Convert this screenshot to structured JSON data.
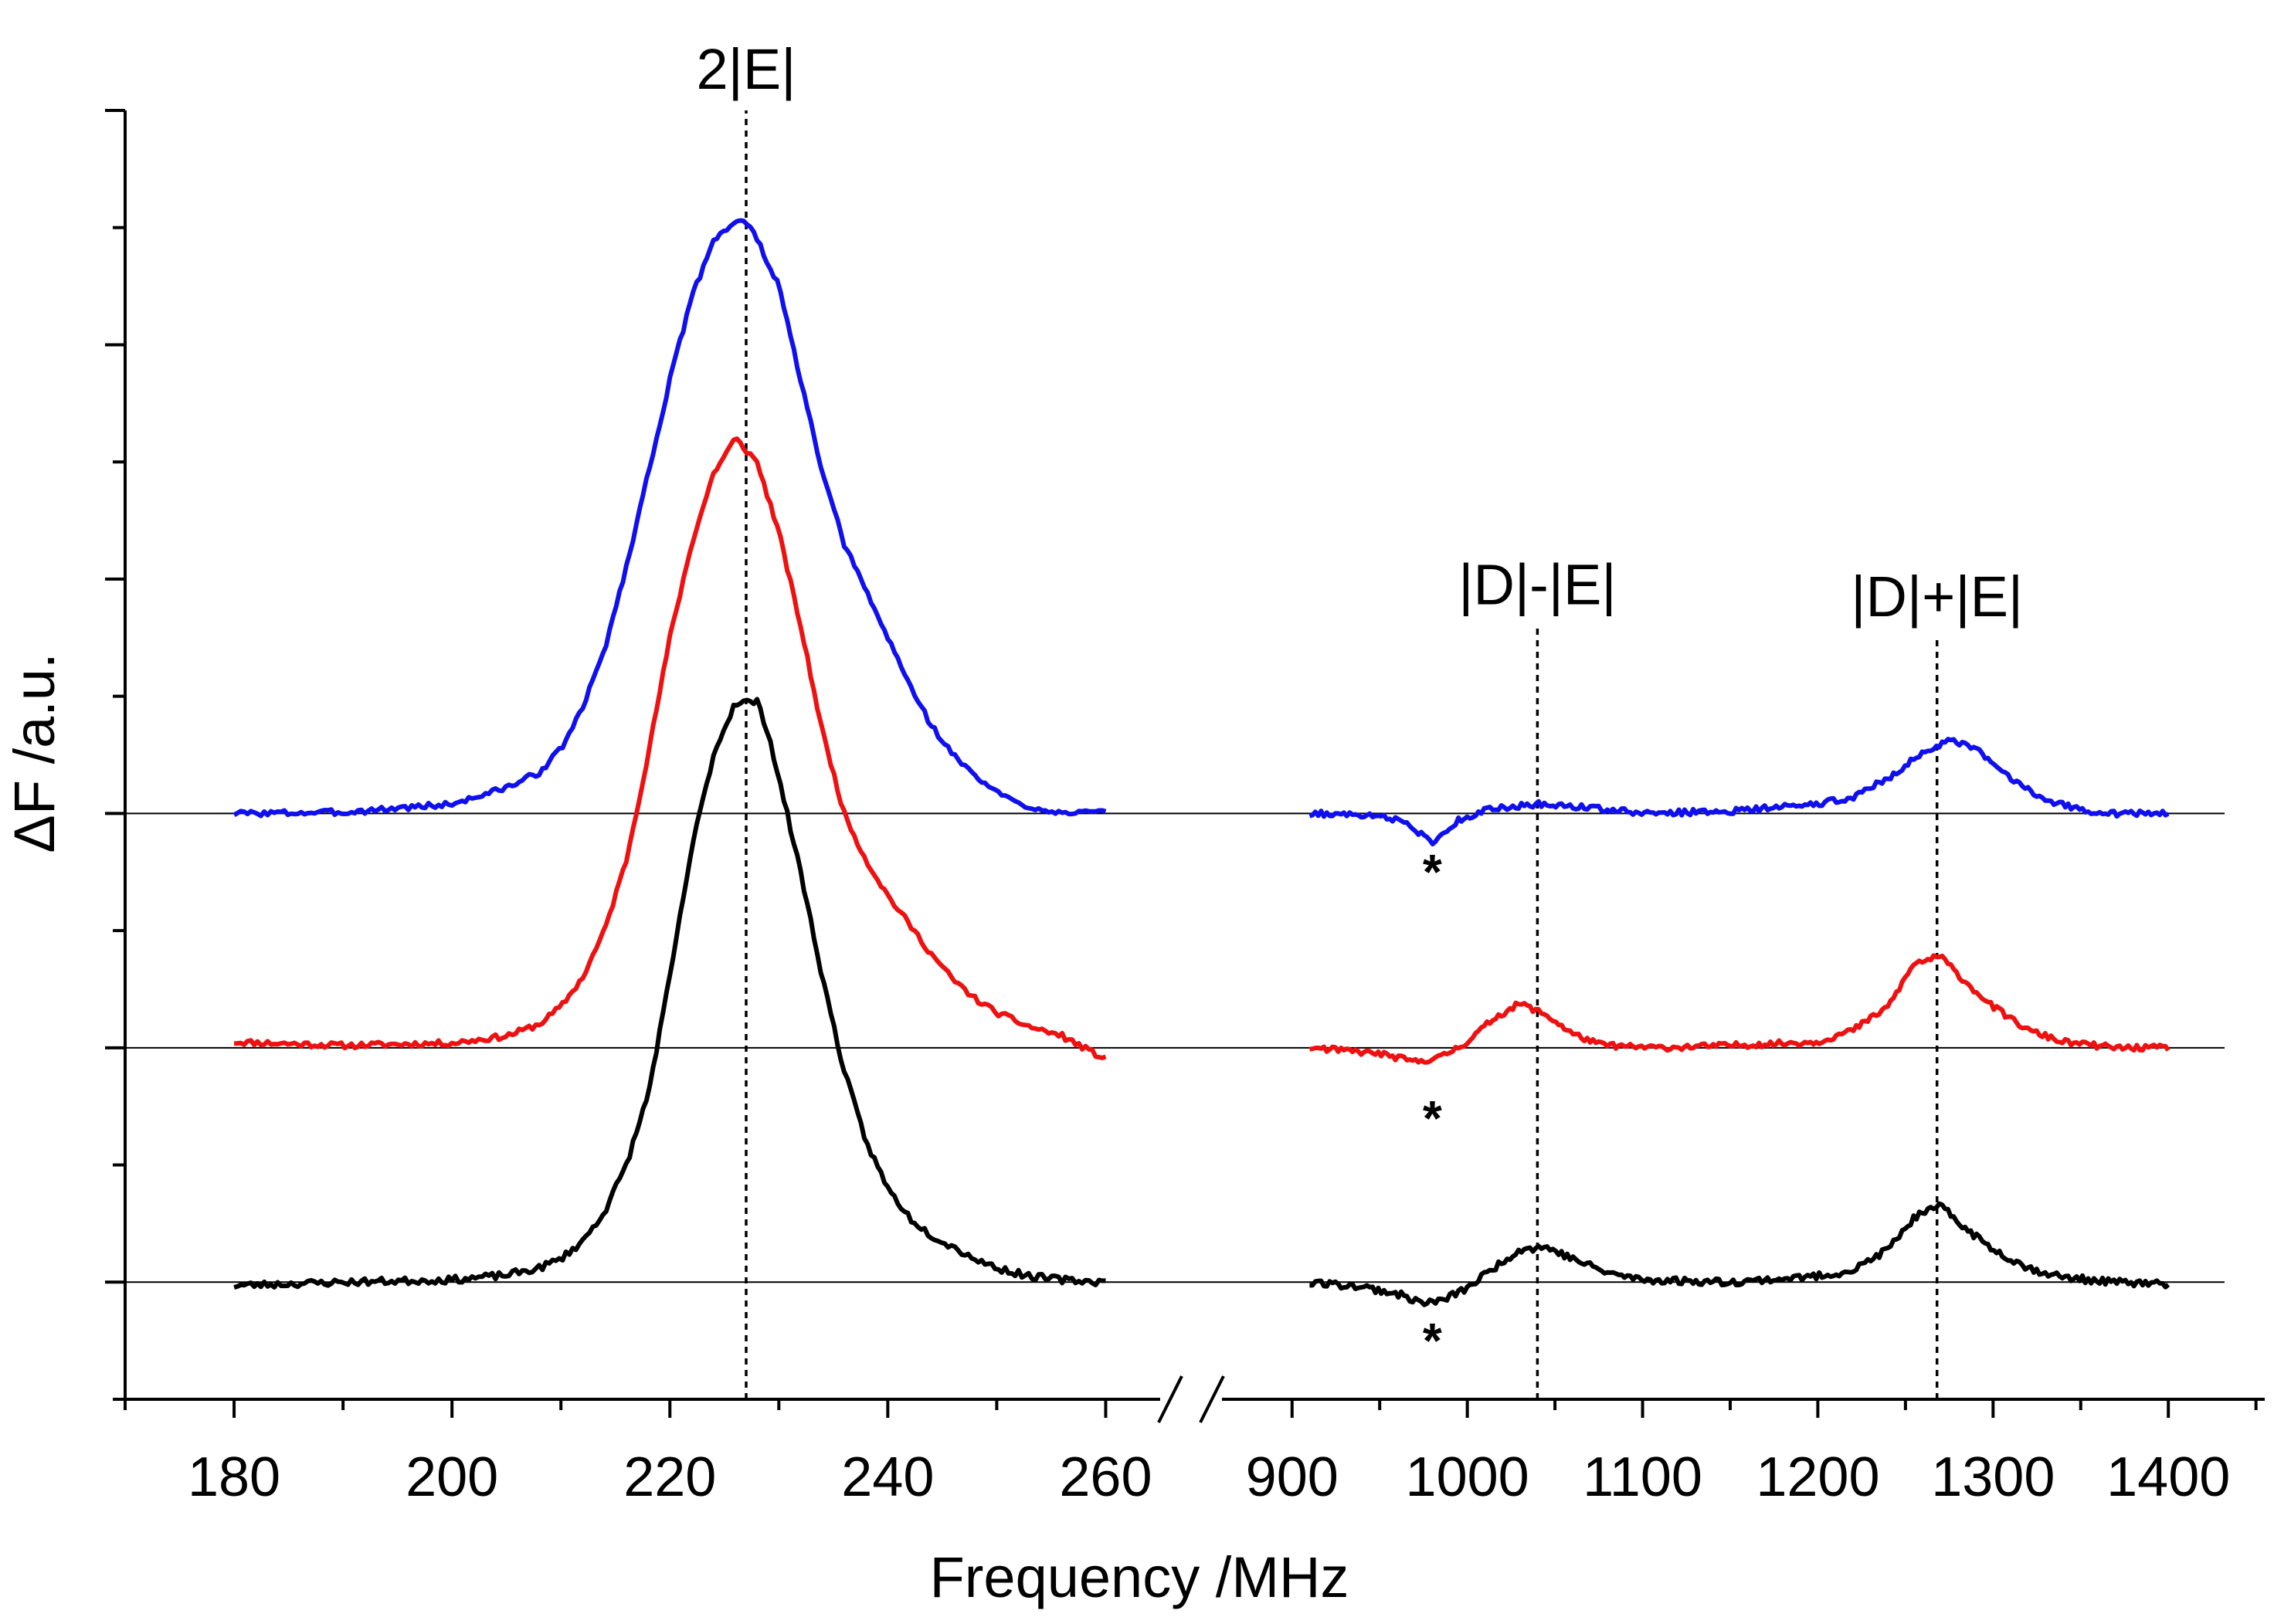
{
  "chart_data": {
    "type": "line",
    "title": "",
    "xlabel": "Frequency /MHz",
    "ylabel": "ΔF /a.u.",
    "x_axis_broken": true,
    "segments": [
      {
        "name": "low",
        "xlim": [
          170,
          265
        ],
        "ticks": [
          180,
          200,
          220,
          240,
          260
        ],
        "tick_labels": [
          "180",
          "200",
          "220",
          "240",
          "260"
        ]
      },
      {
        "name": "high",
        "xlim": [
          860,
          1455
        ],
        "ticks": [
          900,
          1000,
          1100,
          1200,
          1300,
          1400
        ],
        "tick_labels": [
          "900",
          "1000",
          "1100",
          "1200",
          "1300",
          "1400"
        ]
      }
    ],
    "ylim": [
      -1.0,
      10.0
    ],
    "y_tick_step": 1,
    "grid": false,
    "legend": "none",
    "series": [
      {
        "name": "blue",
        "color": "#1010ee",
        "baseline": 4,
        "noise": 0.025,
        "seed": 3,
        "x_low": [
          180,
          190,
          200,
          205,
          208,
          210,
          212,
          214,
          216,
          218,
          220,
          222,
          224,
          226,
          227,
          228,
          230,
          232,
          234,
          236,
          238,
          240,
          242,
          244,
          246,
          248,
          250,
          252,
          255,
          260
        ],
        "y_low": [
          0.0,
          0.01,
          0.08,
          0.22,
          0.35,
          0.55,
          0.9,
          1.4,
          2.1,
          2.9,
          3.7,
          4.4,
          4.9,
          5.05,
          5.05,
          4.9,
          4.5,
          3.7,
          2.9,
          2.3,
          1.9,
          1.5,
          1.1,
          0.75,
          0.5,
          0.32,
          0.18,
          0.08,
          0.02,
          0.0
        ],
        "x_high": [
          910,
          950,
          965,
          980,
          995,
          1010,
          1040,
          1070,
          1100,
          1150,
          1200,
          1220,
          1240,
          1260,
          1275,
          1290,
          1310,
          1330,
          1350,
          1370,
          1400
        ],
        "y_high": [
          0.0,
          -0.02,
          -0.08,
          -0.25,
          -0.06,
          0.03,
          0.08,
          0.05,
          0.0,
          0.02,
          0.08,
          0.14,
          0.3,
          0.52,
          0.62,
          0.55,
          0.3,
          0.12,
          0.03,
          0.0,
          0.0
        ]
      },
      {
        "name": "red",
        "color": "#ee1111",
        "baseline": 2,
        "noise": 0.025,
        "seed": 11,
        "x_low": [
          180,
          190,
          200,
          205,
          208,
          210,
          212,
          214,
          216,
          218,
          220,
          222,
          224,
          226,
          228,
          230,
          232,
          234,
          236,
          238,
          240,
          242,
          244,
          246,
          248,
          250,
          253,
          256,
          260
        ],
        "y_low": [
          0.05,
          0.02,
          0.04,
          0.1,
          0.2,
          0.35,
          0.6,
          1.0,
          1.6,
          2.5,
          3.5,
          4.3,
          4.9,
          5.2,
          5.0,
          4.4,
          3.6,
          2.7,
          2.0,
          1.6,
          1.3,
          1.05,
          0.8,
          0.58,
          0.42,
          0.3,
          0.18,
          0.1,
          -0.1
        ],
        "x_high": [
          910,
          950,
          970,
          985,
          1000,
          1015,
          1030,
          1045,
          1060,
          1075,
          1090,
          1110,
          1150,
          1200,
          1220,
          1240,
          1255,
          1270,
          1285,
          1300,
          1320,
          1340,
          1370,
          1400
        ],
        "y_high": [
          0.0,
          -0.05,
          -0.12,
          -0.08,
          0.05,
          0.25,
          0.38,
          0.28,
          0.12,
          0.03,
          0.01,
          0.0,
          0.02,
          0.05,
          0.15,
          0.35,
          0.72,
          0.78,
          0.55,
          0.35,
          0.15,
          0.05,
          0.0,
          0.0
        ]
      },
      {
        "name": "black",
        "color": "#000000",
        "baseline": 0,
        "noise": 0.03,
        "seed": 23,
        "x_low": [
          180,
          190,
          200,
          205,
          208,
          210,
          212,
          214,
          216,
          218,
          220,
          222,
          224,
          226,
          228,
          229,
          230,
          232,
          234,
          236,
          238,
          240,
          242,
          244,
          246,
          248,
          250,
          253,
          256,
          260
        ],
        "y_low": [
          -0.03,
          0.0,
          0.02,
          0.06,
          0.12,
          0.2,
          0.35,
          0.6,
          1.0,
          1.6,
          2.6,
          3.7,
          4.5,
          4.95,
          4.95,
          4.7,
          4.3,
          3.5,
          2.6,
          1.8,
          1.2,
          0.8,
          0.55,
          0.4,
          0.3,
          0.2,
          0.12,
          0.05,
          0.02,
          0.0
        ],
        "x_high": [
          910,
          940,
          960,
          975,
          985,
          1000,
          1015,
          1030,
          1045,
          1060,
          1080,
          1100,
          1150,
          1200,
          1220,
          1240,
          1255,
          1270,
          1285,
          1300,
          1320,
          1340,
          1370,
          1400
        ],
        "y_high": [
          0.0,
          -0.04,
          -0.1,
          -0.18,
          -0.16,
          -0.05,
          0.12,
          0.28,
          0.3,
          0.2,
          0.08,
          0.02,
          0.0,
          0.05,
          0.1,
          0.28,
          0.55,
          0.65,
          0.45,
          0.28,
          0.12,
          0.04,
          0.0,
          -0.02
        ]
      }
    ],
    "reference_lines": [
      {
        "label": "2|E|",
        "segment": "low",
        "x": 227,
        "y_from": -1.0,
        "y_to": 10.0,
        "label_y": 10.0
      },
      {
        "label": "|D|-|E|",
        "segment": "high",
        "x": 1040,
        "y_from": -1.0,
        "y_to": 5.6,
        "label_y": 5.6
      },
      {
        "label": "|D|+|E|",
        "segment": "high",
        "x": 1268,
        "y_from": -1.0,
        "y_to": 5.5,
        "label_y": 5.5
      }
    ],
    "annotations": [
      {
        "text": "*",
        "segment": "high",
        "x": 980,
        "y": 3.5
      },
      {
        "text": "*",
        "segment": "high",
        "x": 980,
        "y": 1.4
      },
      {
        "text": "*",
        "segment": "high",
        "x": 980,
        "y": -0.5
      }
    ]
  }
}
